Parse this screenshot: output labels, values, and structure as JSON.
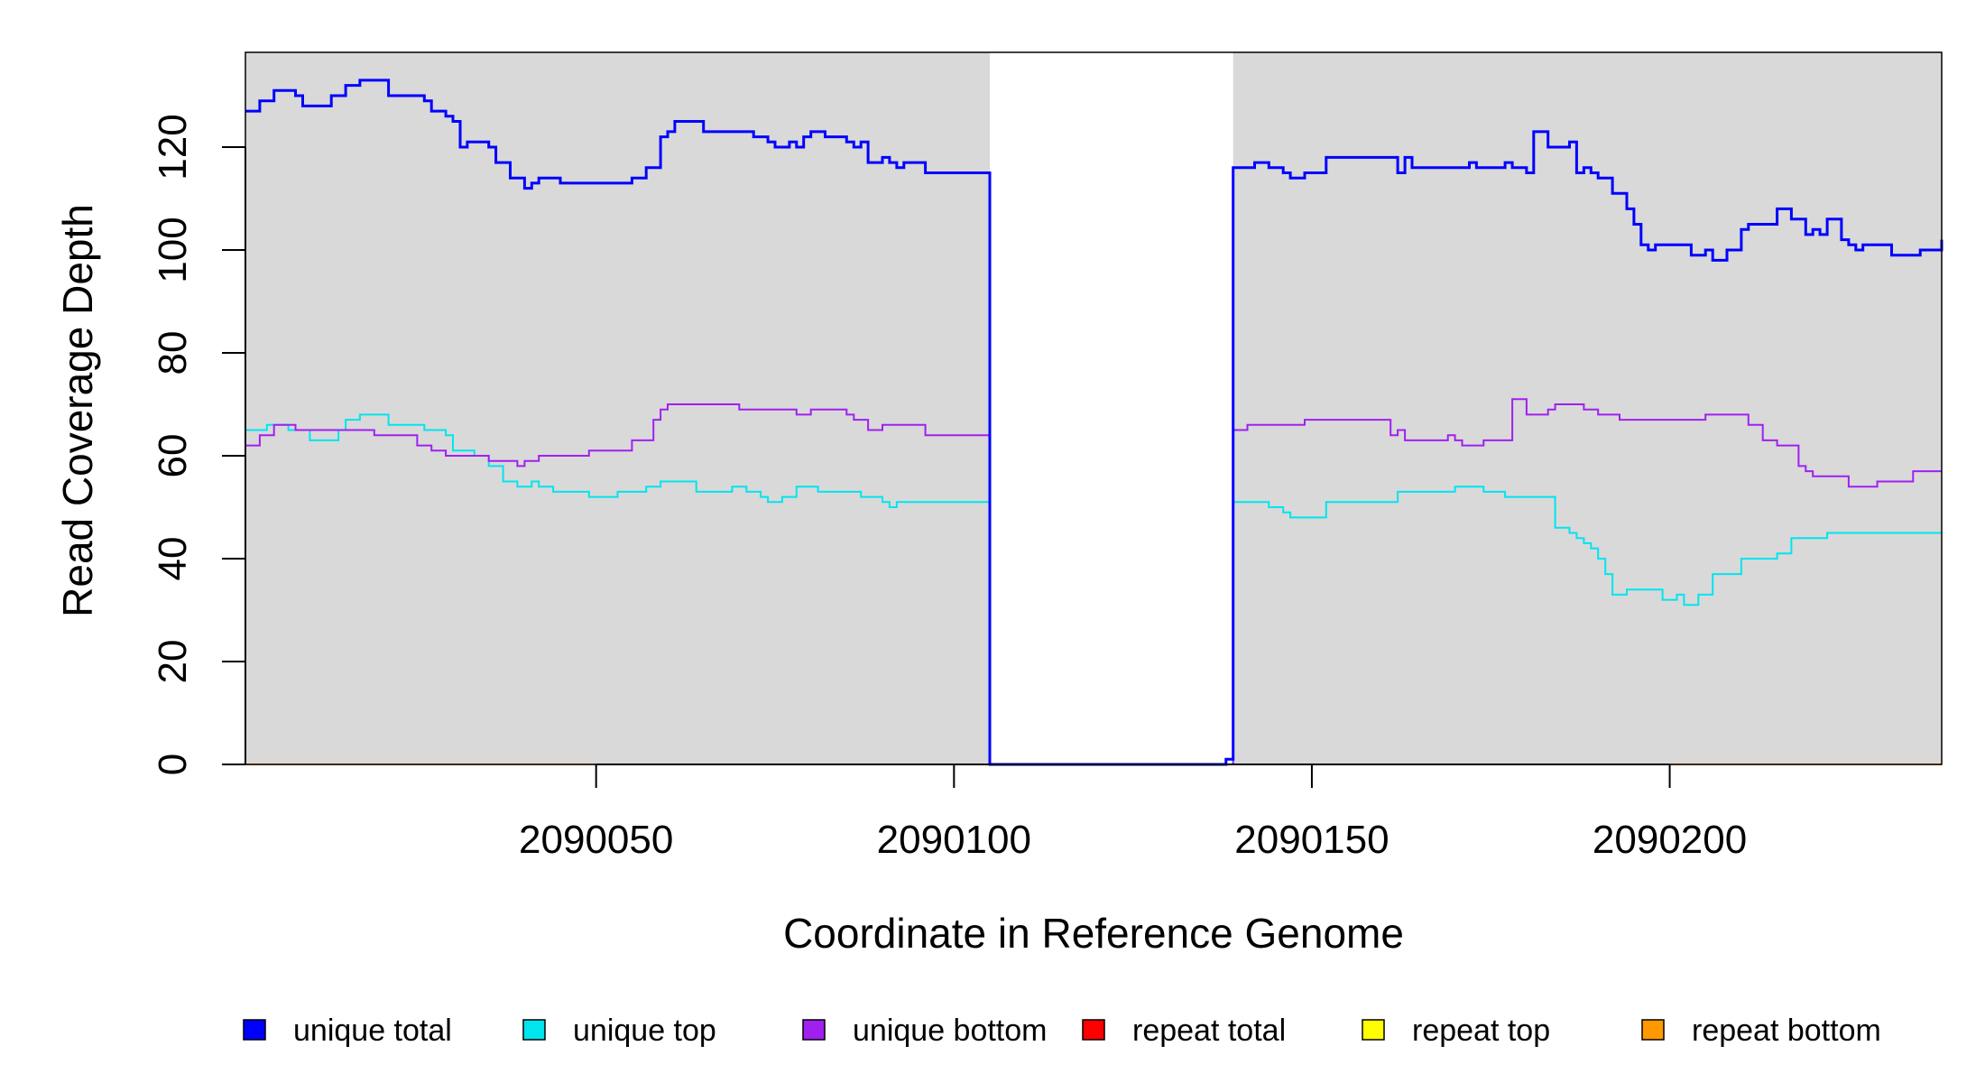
{
  "chart_data": {
    "type": "line",
    "title": "",
    "xlabel": "Coordinate in Reference Genome",
    "ylabel": "Read Coverage Depth",
    "xlim": [
      2090001,
      2090238
    ],
    "ylim": [
      0,
      135
    ],
    "x_ticks": [
      2090050,
      2090100,
      2090150,
      2090200
    ],
    "y_ticks": [
      0,
      20,
      40,
      60,
      80,
      100,
      120
    ],
    "grid": false,
    "background": {
      "plot_color": "#d9d9d9",
      "white_gap": [
        2090105,
        2090139
      ]
    },
    "legend_position": "bottom",
    "series": [
      {
        "name": "unique total",
        "color": "#0000ff",
        "stroke_width": 3,
        "points": [
          [
            2090001,
            127
          ],
          [
            2090003,
            129
          ],
          [
            2090005,
            131
          ],
          [
            2090008,
            130
          ],
          [
            2090009,
            128
          ],
          [
            2090013,
            130
          ],
          [
            2090015,
            132
          ],
          [
            2090017,
            133
          ],
          [
            2090021,
            130
          ],
          [
            2090026,
            129
          ],
          [
            2090027,
            127
          ],
          [
            2090029,
            126
          ],
          [
            2090030,
            125
          ],
          [
            2090031,
            120
          ],
          [
            2090032,
            121
          ],
          [
            2090035,
            120
          ],
          [
            2090036,
            117
          ],
          [
            2090038,
            114
          ],
          [
            2090040,
            112
          ],
          [
            2090041,
            113
          ],
          [
            2090042,
            114
          ],
          [
            2090045,
            113
          ],
          [
            2090055,
            114
          ],
          [
            2090057,
            116
          ],
          [
            2090059,
            122
          ],
          [
            2090060,
            123
          ],
          [
            2090061,
            125
          ],
          [
            2090065,
            123
          ],
          [
            2090072,
            122
          ],
          [
            2090074,
            121
          ],
          [
            2090075,
            120
          ],
          [
            2090077,
            121
          ],
          [
            2090078,
            120
          ],
          [
            2090079,
            122
          ],
          [
            2090080,
            123
          ],
          [
            2090082,
            122
          ],
          [
            2090085,
            121
          ],
          [
            2090086,
            120
          ],
          [
            2090087,
            121
          ],
          [
            2090088,
            117
          ],
          [
            2090090,
            118
          ],
          [
            2090091,
            117
          ],
          [
            2090092,
            116
          ],
          [
            2090093,
            117
          ],
          [
            2090096,
            115
          ],
          [
            2090101,
            115
          ],
          [
            2090105,
            0
          ],
          [
            2090138,
            0
          ],
          [
            2090138,
            1
          ],
          [
            2090139,
            1
          ],
          [
            2090139,
            116
          ],
          [
            2090142,
            117
          ],
          [
            2090144,
            116
          ],
          [
            2090146,
            115
          ],
          [
            2090147,
            114
          ],
          [
            2090149,
            115
          ],
          [
            2090152,
            118
          ],
          [
            2090161,
            118
          ],
          [
            2090162,
            115
          ],
          [
            2090163,
            118
          ],
          [
            2090164,
            116
          ],
          [
            2090172,
            117
          ],
          [
            2090173,
            116
          ],
          [
            2090177,
            117
          ],
          [
            2090178,
            116
          ],
          [
            2090180,
            115
          ],
          [
            2090181,
            123
          ],
          [
            2090183,
            120
          ],
          [
            2090186,
            121
          ],
          [
            2090187,
            115
          ],
          [
            2090188,
            116
          ],
          [
            2090189,
            115
          ],
          [
            2090190,
            114
          ],
          [
            2090192,
            111
          ],
          [
            2090194,
            108
          ],
          [
            2090195,
            105
          ],
          [
            2090196,
            101
          ],
          [
            2090197,
            100
          ],
          [
            2090198,
            101
          ],
          [
            2090203,
            99
          ],
          [
            2090205,
            100
          ],
          [
            2090206,
            98
          ],
          [
            2090208,
            100
          ],
          [
            2090210,
            104
          ],
          [
            2090211,
            105
          ],
          [
            2090215,
            108
          ],
          [
            2090217,
            106
          ],
          [
            2090219,
            103
          ],
          [
            2090220,
            104
          ],
          [
            2090221,
            103
          ],
          [
            2090222,
            106
          ],
          [
            2090224,
            102
          ],
          [
            2090225,
            101
          ],
          [
            2090226,
            100
          ],
          [
            2090227,
            101
          ],
          [
            2090231,
            99
          ],
          [
            2090235,
            100
          ],
          [
            2090238,
            102
          ]
        ]
      },
      {
        "name": "unique top",
        "color": "#00e5ee",
        "stroke_width": 2,
        "points": [
          [
            2090001,
            65
          ],
          [
            2090004,
            66
          ],
          [
            2090007,
            65
          ],
          [
            2090010,
            63
          ],
          [
            2090014,
            65
          ],
          [
            2090015,
            67
          ],
          [
            2090017,
            68
          ],
          [
            2090021,
            66
          ],
          [
            2090026,
            65
          ],
          [
            2090029,
            64
          ],
          [
            2090030,
            61
          ],
          [
            2090033,
            60
          ],
          [
            2090035,
            58
          ],
          [
            2090037,
            55
          ],
          [
            2090039,
            54
          ],
          [
            2090041,
            55
          ],
          [
            2090042,
            54
          ],
          [
            2090044,
            53
          ],
          [
            2090049,
            52
          ],
          [
            2090053,
            53
          ],
          [
            2090057,
            54
          ],
          [
            2090059,
            55
          ],
          [
            2090064,
            53
          ],
          [
            2090069,
            54
          ],
          [
            2090071,
            53
          ],
          [
            2090073,
            52
          ],
          [
            2090074,
            51
          ],
          [
            2090076,
            52
          ],
          [
            2090078,
            54
          ],
          [
            2090081,
            53
          ],
          [
            2090087,
            52
          ],
          [
            2090090,
            51
          ],
          [
            2090091,
            50
          ],
          [
            2090092,
            51
          ],
          [
            2090101,
            51
          ],
          [
            2090105,
            0
          ],
          [
            2090139,
            0
          ],
          [
            2090139,
            51
          ],
          [
            2090144,
            50
          ],
          [
            2090146,
            49
          ],
          [
            2090147,
            48
          ],
          [
            2090152,
            51
          ],
          [
            2090162,
            53
          ],
          [
            2090170,
            54
          ],
          [
            2090174,
            53
          ],
          [
            2090177,
            52
          ],
          [
            2090184,
            46
          ],
          [
            2090186,
            45
          ],
          [
            2090187,
            44
          ],
          [
            2090188,
            43
          ],
          [
            2090189,
            42
          ],
          [
            2090190,
            40
          ],
          [
            2090191,
            37
          ],
          [
            2090192,
            33
          ],
          [
            2090194,
            34
          ],
          [
            2090199,
            32
          ],
          [
            2090201,
            33
          ],
          [
            2090202,
            31
          ],
          [
            2090204,
            33
          ],
          [
            2090206,
            37
          ],
          [
            2090210,
            40
          ],
          [
            2090215,
            41
          ],
          [
            2090217,
            44
          ],
          [
            2090222,
            45
          ],
          [
            2090238,
            45
          ]
        ]
      },
      {
        "name": "unique bottom",
        "color": "#a020f0",
        "stroke_width": 2,
        "points": [
          [
            2090001,
            62
          ],
          [
            2090003,
            64
          ],
          [
            2090005,
            66
          ],
          [
            2090008,
            65
          ],
          [
            2090019,
            64
          ],
          [
            2090025,
            62
          ],
          [
            2090027,
            61
          ],
          [
            2090029,
            60
          ],
          [
            2090035,
            59
          ],
          [
            2090039,
            58
          ],
          [
            2090040,
            59
          ],
          [
            2090042,
            60
          ],
          [
            2090049,
            61
          ],
          [
            2090055,
            63
          ],
          [
            2090058,
            67
          ],
          [
            2090059,
            69
          ],
          [
            2090060,
            70
          ],
          [
            2090070,
            69
          ],
          [
            2090078,
            68
          ],
          [
            2090080,
            69
          ],
          [
            2090085,
            68
          ],
          [
            2090086,
            67
          ],
          [
            2090088,
            65
          ],
          [
            2090090,
            66
          ],
          [
            2090096,
            64
          ],
          [
            2090101,
            64
          ],
          [
            2090105,
            0
          ],
          [
            2090139,
            0
          ],
          [
            2090139,
            65
          ],
          [
            2090141,
            66
          ],
          [
            2090149,
            67
          ],
          [
            2090161,
            64
          ],
          [
            2090162,
            65
          ],
          [
            2090163,
            63
          ],
          [
            2090169,
            64
          ],
          [
            2090170,
            63
          ],
          [
            2090171,
            62
          ],
          [
            2090174,
            63
          ],
          [
            2090178,
            71
          ],
          [
            2090180,
            68
          ],
          [
            2090183,
            69
          ],
          [
            2090184,
            70
          ],
          [
            2090188,
            69
          ],
          [
            2090190,
            68
          ],
          [
            2090193,
            67
          ],
          [
            2090205,
            68
          ],
          [
            2090211,
            66
          ],
          [
            2090213,
            63
          ],
          [
            2090215,
            62
          ],
          [
            2090218,
            58
          ],
          [
            2090219,
            57
          ],
          [
            2090220,
            56
          ],
          [
            2090225,
            54
          ],
          [
            2090229,
            55
          ],
          [
            2090234,
            57
          ],
          [
            2090238,
            57
          ]
        ]
      },
      {
        "name": "repeat total",
        "color": "#ff0000",
        "stroke_width": 2,
        "points": [
          [
            2090001,
            0
          ],
          [
            2090238,
            0
          ]
        ]
      },
      {
        "name": "repeat top",
        "color": "#ffff00",
        "stroke_width": 2,
        "points": [
          [
            2090001,
            0
          ],
          [
            2090238,
            0
          ]
        ]
      },
      {
        "name": "repeat bottom",
        "color": "#ff9900",
        "stroke_width": 2,
        "points": [
          [
            2090001,
            0
          ],
          [
            2090238,
            0
          ]
        ]
      }
    ]
  }
}
